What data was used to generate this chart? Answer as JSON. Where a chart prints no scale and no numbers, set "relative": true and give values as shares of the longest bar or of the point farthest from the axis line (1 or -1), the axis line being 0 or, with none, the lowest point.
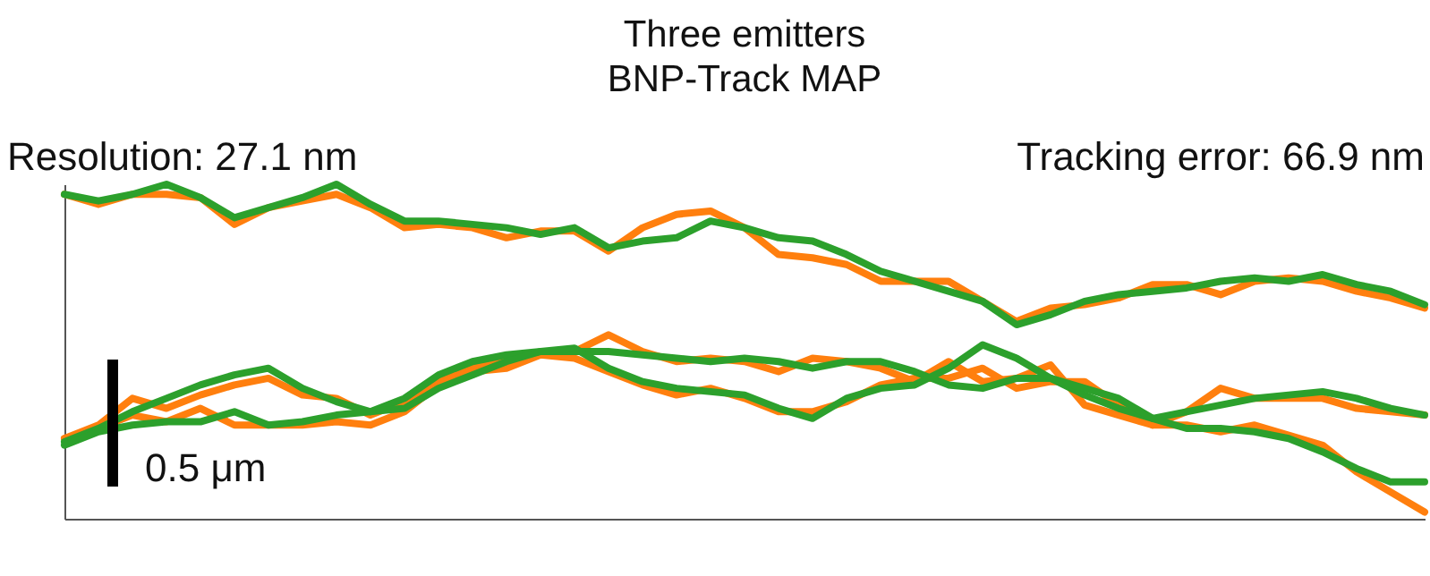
{
  "chart_data": {
    "type": "line",
    "title": "Three emitters",
    "subtitle": "BNP-Track MAP",
    "relative": true,
    "tick_labels": false,
    "annotations": [
      "Resolution: 27.1 nm",
      "Tracking error: 66.9 nm",
      "0.5 μm"
    ],
    "categories": [
      null,
      null,
      null,
      null,
      null,
      null,
      null,
      null,
      null,
      null,
      null,
      null,
      null,
      null,
      null,
      null,
      null,
      null,
      null,
      null,
      null,
      null,
      null,
      null,
      null,
      null,
      null,
      null,
      null,
      null,
      null,
      null,
      null,
      null,
      null,
      null,
      null,
      null,
      null,
      null,
      null
    ],
    "series": [
      {
        "color": "#ff7f0e",
        "values": [
          0.97,
          0.94,
          0.97,
          0.97,
          0.96,
          0.88,
          0.93,
          0.95,
          0.97,
          0.93,
          0.87,
          0.88,
          0.87,
          0.84,
          0.86,
          0.86,
          0.8,
          0.87,
          0.91,
          0.92,
          0.87,
          0.79,
          0.78,
          0.76,
          0.71,
          0.71,
          0.71,
          0.65,
          0.59,
          0.63,
          0.64,
          0.66,
          0.7,
          0.7,
          0.67,
          0.71,
          0.72,
          0.71,
          0.68,
          0.66,
          0.63
        ]
      },
      {
        "color": "#ff7f0e",
        "values": [
          0.24,
          0.28,
          0.36,
          0.33,
          0.37,
          0.4,
          0.42,
          0.37,
          0.36,
          0.31,
          0.35,
          0.41,
          0.45,
          0.48,
          0.49,
          0.5,
          0.55,
          0.5,
          0.47,
          0.48,
          0.47,
          0.44,
          0.48,
          0.47,
          0.45,
          0.41,
          0.47,
          0.41,
          0.42,
          0.46,
          0.34,
          0.31,
          0.28,
          0.32,
          0.39,
          0.36,
          0.36,
          0.36,
          0.33,
          0.32,
          0.31
        ]
      },
      {
        "color": "#ff7f0e",
        "values": [
          0.24,
          0.27,
          0.31,
          0.29,
          0.33,
          0.28,
          0.28,
          0.28,
          0.29,
          0.28,
          0.32,
          0.4,
          0.44,
          0.45,
          0.49,
          0.48,
          0.44,
          0.4,
          0.37,
          0.39,
          0.36,
          0.32,
          0.32,
          0.35,
          0.4,
          0.42,
          0.42,
          0.45,
          0.39,
          0.41,
          0.41,
          0.34,
          0.28,
          0.28,
          0.26,
          0.28,
          0.25,
          0.22,
          0.14,
          0.08,
          0.02
        ]
      },
      {
        "color": "#2ca02c",
        "values": [
          0.97,
          0.95,
          0.97,
          1.0,
          0.96,
          0.9,
          0.93,
          0.96,
          1.0,
          0.94,
          0.89,
          0.89,
          0.88,
          0.87,
          0.85,
          0.87,
          0.81,
          0.83,
          0.84,
          0.89,
          0.87,
          0.84,
          0.83,
          0.79,
          0.74,
          0.71,
          0.68,
          0.65,
          0.58,
          0.61,
          0.65,
          0.67,
          0.68,
          0.69,
          0.71,
          0.72,
          0.71,
          0.73,
          0.7,
          0.68,
          0.64
        ]
      },
      {
        "color": "#2ca02c",
        "values": [
          0.23,
          0.27,
          0.32,
          0.36,
          0.4,
          0.43,
          0.45,
          0.39,
          0.35,
          0.32,
          0.36,
          0.43,
          0.47,
          0.49,
          0.5,
          0.5,
          0.5,
          0.49,
          0.48,
          0.47,
          0.48,
          0.47,
          0.45,
          0.47,
          0.47,
          0.44,
          0.4,
          0.39,
          0.42,
          0.42,
          0.37,
          0.33,
          0.3,
          0.32,
          0.34,
          0.36,
          0.37,
          0.38,
          0.36,
          0.33,
          0.31
        ]
      },
      {
        "color": "#2ca02c",
        "values": [
          0.22,
          0.26,
          0.28,
          0.29,
          0.29,
          0.32,
          0.28,
          0.29,
          0.31,
          0.32,
          0.33,
          0.39,
          0.43,
          0.47,
          0.5,
          0.51,
          0.45,
          0.41,
          0.39,
          0.38,
          0.37,
          0.33,
          0.3,
          0.36,
          0.39,
          0.4,
          0.45,
          0.52,
          0.48,
          0.42,
          0.39,
          0.36,
          0.3,
          0.27,
          0.27,
          0.26,
          0.24,
          0.2,
          0.15,
          0.11,
          0.11
        ]
      }
    ]
  }
}
